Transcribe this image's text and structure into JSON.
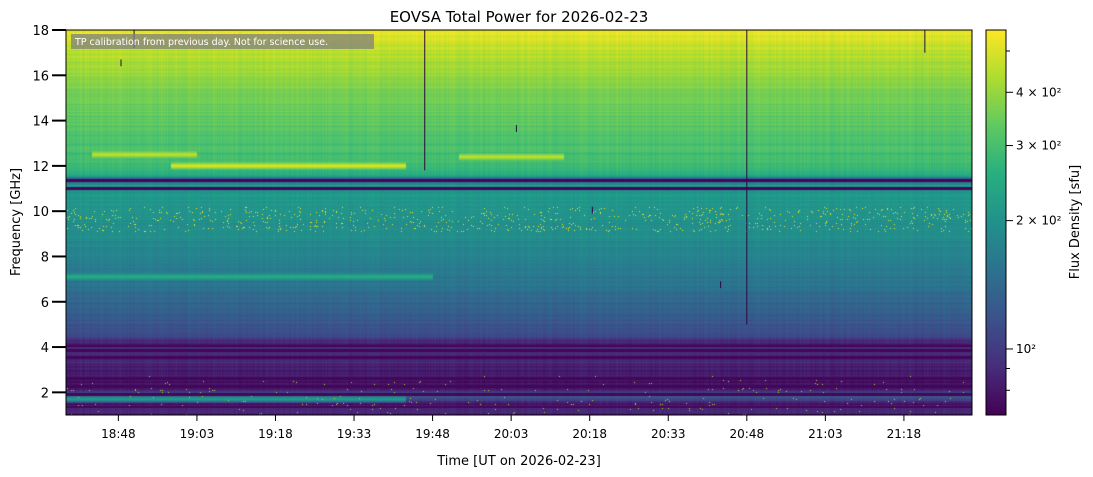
{
  "chart_data": {
    "type": "heatmap",
    "title": "EOVSA Total Power for 2026-02-23",
    "xlabel": "Time [UT on 2026-02-23]",
    "ylabel": "Frequency [GHz]",
    "annotation": "TP calibration from previous day. Not for science use.",
    "x_start": "18:38",
    "x_end": "21:31",
    "x_ticks": [
      "18:48",
      "19:03",
      "19:18",
      "19:33",
      "19:48",
      "20:03",
      "20:18",
      "20:33",
      "20:48",
      "21:03",
      "21:18"
    ],
    "x_tick_minutes": [
      10,
      25,
      40,
      55,
      70,
      85,
      100,
      115,
      130,
      145,
      160
    ],
    "x_total_minutes": 173,
    "ylim": [
      1.0,
      18.0
    ],
    "y_ticks": [
      2,
      4,
      6,
      8,
      10,
      12,
      14,
      16,
      18
    ],
    "colorbar": {
      "label": "Flux Density [sfu]",
      "scale": "log",
      "range": [
        70,
        560
      ],
      "tick_values": [
        400,
        300,
        200,
        100
      ],
      "tick_labels": [
        "4 × 10²",
        "3 × 10²",
        "2 × 10²",
        "10²"
      ],
      "colormap": "viridis"
    },
    "frequency_profile_sfu": [
      {
        "f": 1.0,
        "v": 80
      },
      {
        "f": 1.3,
        "v": 95
      },
      {
        "f": 1.5,
        "v": 75
      },
      {
        "f": 1.8,
        "v": 130
      },
      {
        "f": 2.1,
        "v": 85
      },
      {
        "f": 2.4,
        "v": 78
      },
      {
        "f": 2.7,
        "v": 80
      },
      {
        "f": 3.0,
        "v": 82
      },
      {
        "f": 3.3,
        "v": 88
      },
      {
        "f": 3.6,
        "v": 85
      },
      {
        "f": 3.9,
        "v": 90
      },
      {
        "f": 4.1,
        "v": 80
      },
      {
        "f": 4.5,
        "v": 110
      },
      {
        "f": 5.0,
        "v": 120
      },
      {
        "f": 6.0,
        "v": 140
      },
      {
        "f": 7.0,
        "v": 160
      },
      {
        "f": 8.0,
        "v": 175
      },
      {
        "f": 9.0,
        "v": 195
      },
      {
        "f": 10.0,
        "v": 205
      },
      {
        "f": 10.9,
        "v": 215
      },
      {
        "f": 11.0,
        "v": 75
      },
      {
        "f": 11.1,
        "v": 230
      },
      {
        "f": 11.4,
        "v": 100
      },
      {
        "f": 11.6,
        "v": 260
      },
      {
        "f": 12.0,
        "v": 290
      },
      {
        "f": 13.0,
        "v": 310
      },
      {
        "f": 14.0,
        "v": 330
      },
      {
        "f": 15.0,
        "v": 360
      },
      {
        "f": 16.0,
        "v": 400
      },
      {
        "f": 17.0,
        "v": 450
      },
      {
        "f": 18.0,
        "v": 520
      }
    ],
    "dark_bands_ghz": [
      1.35,
      1.9,
      2.25,
      2.6,
      3.55,
      3.85,
      4.05,
      11.0,
      11.35
    ],
    "bright_features": [
      {
        "f": 12.0,
        "t_start": 20,
        "t_end": 65,
        "v": 520
      },
      {
        "f": 12.5,
        "t_start": 5,
        "t_end": 25,
        "v": 470
      },
      {
        "f": 12.4,
        "t_start": 75,
        "t_end": 95,
        "v": 470
      },
      {
        "f": 7.1,
        "t_start": 0,
        "t_end": 70,
        "v": 260
      },
      {
        "f": 1.7,
        "t_start": 0,
        "t_end": 65,
        "v": 230
      }
    ],
    "spikes": [
      {
        "t": 13.0,
        "f_low": 17.2,
        "f_high": 18.0
      },
      {
        "t": 10.5,
        "f_low": 16.4,
        "f_high": 16.7
      },
      {
        "t": 68.5,
        "f_low": 11.8,
        "f_high": 18.0
      },
      {
        "t": 86.0,
        "f_low": 13.5,
        "f_high": 13.8
      },
      {
        "t": 100.5,
        "f_low": 9.9,
        "f_high": 10.2
      },
      {
        "t": 125.0,
        "f_low": 6.6,
        "f_high": 6.9
      },
      {
        "t": 130.0,
        "f_low": 5.0,
        "f_high": 18.0
      },
      {
        "t": 164.0,
        "f_low": 17.0,
        "f_high": 18.0
      }
    ]
  }
}
